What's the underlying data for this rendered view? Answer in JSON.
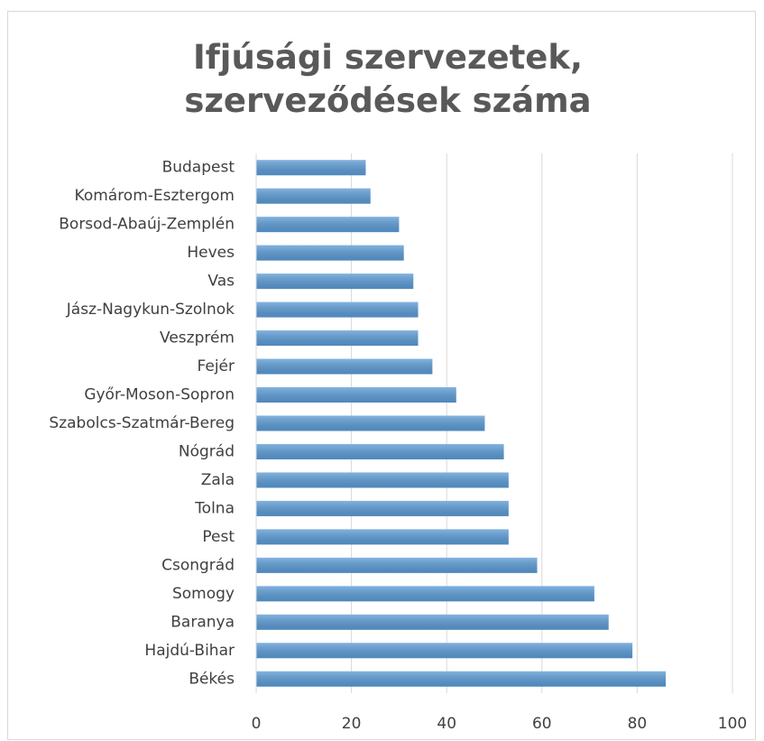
{
  "chart_data": {
    "type": "barh",
    "title": "Ifjúsági szervezetek, szerveződések száma",
    "categories": [
      "Budapest",
      "Komárom-Esztergom",
      "Borsod-Abaúj-Zemplén",
      "Heves",
      "Vas",
      "Jász-Nagykun-Szolnok",
      "Veszprém",
      "Fejér",
      "Győr-Moson-Sopron",
      "Szabolcs-Szatmár-Bereg",
      "Nógrád",
      "Zala",
      "Tolna",
      "Pest",
      "Csongrád",
      "Somogy",
      "Baranya",
      "Hajdú-Bihar",
      "Békés"
    ],
    "values": [
      23,
      24,
      30,
      31,
      33,
      34,
      34,
      37,
      42,
      48,
      52,
      53,
      53,
      53,
      59,
      71,
      74,
      79,
      86
    ],
    "color": "#5b9bd5",
    "xlim": [
      0,
      100
    ],
    "xticks": [
      0,
      20,
      40,
      60,
      80,
      100
    ],
    "grid": true
  }
}
